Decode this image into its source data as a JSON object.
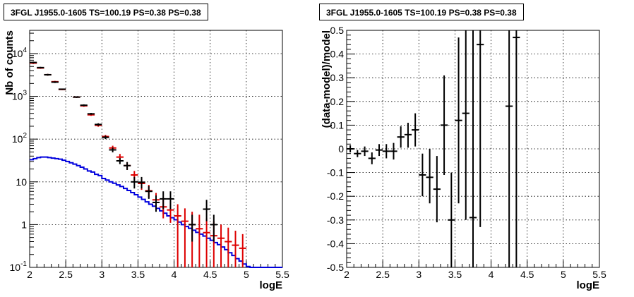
{
  "chart_data": [
    {
      "type": "line",
      "title": "3FGL J1955.0-1605 TS=100.19 PS=0.38 PS=0.38",
      "xlabel": "logE",
      "ylabel": "Nb of counts",
      "xlim": [
        2,
        5.5
      ],
      "ylim": [
        0.1,
        35000
      ],
      "yscale": "log",
      "grid": true,
      "xticks": [
        "2",
        "2.5",
        "3",
        "3.5",
        "4",
        "4.5",
        "5",
        "5.5"
      ],
      "yticks": [
        {
          "value": 0.1,
          "base": "10",
          "exp": "-1",
          "label": "0.1"
        },
        {
          "value": 1,
          "base": "1",
          "exp": "",
          "label": "1"
        },
        {
          "value": 10,
          "base": "10",
          "exp": "",
          "label": "10"
        },
        {
          "value": 100,
          "base": "10",
          "exp": "2",
          "label": ""
        },
        {
          "value": 1000,
          "base": "10",
          "exp": "3",
          "label": ""
        },
        {
          "value": 10000,
          "base": "10",
          "exp": "4",
          "label": ""
        }
      ],
      "series": [
        {
          "kind": "step",
          "color": "#0000dd",
          "x_edges": [
            2.0,
            2.05,
            2.1,
            2.15,
            2.2,
            2.25,
            2.3,
            2.35,
            2.4,
            2.45,
            2.5,
            2.55,
            2.6,
            2.65,
            2.7,
            2.75,
            2.8,
            2.85,
            2.9,
            2.95,
            3.0,
            3.05,
            3.1,
            3.15,
            3.2,
            3.25,
            3.3,
            3.35,
            3.4,
            3.45,
            3.5,
            3.55,
            3.6,
            3.65,
            3.7,
            3.75,
            3.8,
            3.85,
            3.9,
            3.95,
            4.0,
            4.05,
            4.1,
            4.15,
            4.2,
            4.25,
            4.3,
            4.35,
            4.4,
            4.45,
            4.5,
            4.55,
            4.6,
            4.65,
            4.7,
            4.75,
            4.8,
            4.85,
            4.9,
            4.95,
            5.0,
            5.05,
            5.1,
            5.15,
            5.2,
            5.25,
            5.3,
            5.35,
            5.4,
            5.45,
            5.5
          ],
          "values": [
            33,
            35,
            37,
            38,
            38,
            37,
            36,
            35,
            34,
            32,
            30,
            28,
            26,
            24,
            22,
            20,
            18,
            17,
            15,
            14,
            12,
            11,
            10,
            9.3,
            8.5,
            7.8,
            7.0,
            6.3,
            5.6,
            5.0,
            4.4,
            3.9,
            3.4,
            3.0,
            2.7,
            2.4,
            2.1,
            1.85,
            1.6,
            1.45,
            1.3,
            1.15,
            1.0,
            0.9,
            0.82,
            0.74,
            0.66,
            0.6,
            0.54,
            0.48,
            0.43,
            0.38,
            0.34,
            0.3,
            0.26,
            0.22,
            0.19,
            0.16,
            0.14,
            0.12,
            0.105,
            0.1,
            0.1,
            0.1,
            0.1,
            0.1,
            0.1,
            0.1,
            0.1,
            0.1
          ]
        },
        {
          "kind": "points",
          "color": "#dd0000",
          "half_width": 0.05,
          "points": [
            [
              2.05,
              6000,
              5700,
              6300
            ],
            [
              2.15,
              4600,
              4400,
              4800
            ],
            [
              2.25,
              3200,
              3050,
              3350
            ],
            [
              2.35,
              2200,
              2100,
              2300
            ],
            [
              2.45,
              1450,
              1400,
              1500
            ],
            [
              2.65,
              960,
              920,
              1000
            ],
            [
              2.75,
              600,
              570,
              630
            ],
            [
              2.85,
              370,
              350,
              390
            ],
            [
              2.95,
              210,
              195,
              225
            ],
            [
              3.05,
              115,
              105,
              125
            ],
            [
              3.15,
              62,
              55,
              70
            ],
            [
              3.25,
              38,
              32,
              45
            ],
            [
              3.35,
              24,
              19,
              29
            ],
            [
              3.45,
              14.5,
              11,
              18
            ],
            [
              3.55,
              9.2,
              6.5,
              12
            ],
            [
              3.65,
              6.2,
              4.2,
              8.5
            ],
            [
              3.75,
              3.8,
              2.3,
              5.5
            ],
            [
              3.85,
              2.6,
              1.4,
              4.2
            ],
            [
              3.95,
              2.2,
              1.1,
              3.6
            ],
            [
              4.05,
              1.6,
              0.1,
              3.0
            ],
            [
              4.15,
              1.2,
              0.1,
              2.4
            ],
            [
              4.25,
              1.0,
              0.1,
              2.0
            ],
            [
              4.35,
              0.8,
              0.1,
              1.7
            ],
            [
              4.45,
              0.65,
              0.1,
              1.4
            ],
            [
              4.55,
              0.55,
              0.1,
              1.2
            ],
            [
              4.65,
              0.48,
              0.1,
              1.0
            ],
            [
              4.75,
              0.4,
              0.1,
              0.85
            ],
            [
              4.85,
              0.33,
              0.1,
              0.72
            ],
            [
              4.95,
              0.28,
              0.1,
              0.6
            ]
          ]
        },
        {
          "kind": "points",
          "color": "#000000",
          "half_width": 0.05,
          "points": [
            [
              2.05,
              6200,
              5900,
              6500
            ],
            [
              2.15,
              4700,
              4500,
              4900
            ],
            [
              2.25,
              3200,
              3050,
              3350
            ],
            [
              2.35,
              2150,
              2050,
              2250
            ],
            [
              2.45,
              1470,
              1420,
              1520
            ],
            [
              2.65,
              960,
              920,
              1000
            ],
            [
              2.75,
              620,
              590,
              650
            ],
            [
              2.85,
              390,
              370,
              410
            ],
            [
              2.95,
              220,
              205,
              235
            ],
            [
              3.05,
              110,
              100,
              120
            ],
            [
              3.15,
              56,
              49,
              63
            ],
            [
              3.25,
              31,
              26,
              36
            ],
            [
              3.35,
              24,
              19,
              29
            ],
            [
              3.45,
              10,
              7,
              13
            ],
            [
              3.55,
              9.8,
              7,
              13
            ],
            [
              3.65,
              6,
              4,
              8
            ],
            [
              3.75,
              3.3,
              2,
              4.8
            ],
            [
              3.85,
              4,
              2.3,
              6
            ],
            [
              3.95,
              4,
              2.3,
              6
            ],
            [
              4.45,
              2.3,
              1.2,
              3.8
            ],
            [
              4.25,
              1.0,
              0.4,
              1.7
            ],
            [
              4.55,
              1.0,
              0.4,
              1.7
            ]
          ]
        }
      ]
    },
    {
      "type": "scatter",
      "title": "3FGL J1955.0-1605 TS=100.19 PS=0.38 PS=0.38",
      "xlabel": "logE",
      "ylabel": "(data-model)/model",
      "xlim": [
        2,
        5.5
      ],
      "ylim": [
        -0.5,
        0.5
      ],
      "grid": true,
      "xticks": [
        "2",
        "2.5",
        "3",
        "3.5",
        "4",
        "4.5",
        "5",
        "5.5"
      ],
      "yticks": [
        "-0.5",
        "-0.4",
        "-0.3",
        "-0.2",
        "-0.1",
        "0",
        "0.1",
        "0.2",
        "0.3",
        "0.4",
        "0.5"
      ],
      "series": [
        {
          "color": "#000000",
          "half_width": 0.05,
          "points": [
            [
              2.05,
              0.0,
              -0.015,
              0.015
            ],
            [
              2.15,
              -0.02,
              -0.035,
              -0.005
            ],
            [
              2.25,
              -0.01,
              -0.03,
              0.01
            ],
            [
              2.35,
              -0.04,
              -0.065,
              -0.015
            ],
            [
              2.45,
              -0.005,
              -0.03,
              0.02
            ],
            [
              2.55,
              -0.01,
              -0.04,
              0.02
            ],
            [
              2.65,
              -0.01,
              -0.045,
              0.025
            ],
            [
              2.75,
              0.05,
              0.005,
              0.095
            ],
            [
              2.85,
              0.06,
              0.005,
              0.11
            ],
            [
              2.95,
              0.08,
              0.01,
              0.15
            ],
            [
              3.05,
              -0.11,
              -0.2,
              -0.02
            ],
            [
              3.15,
              -0.12,
              -0.23,
              0.0
            ],
            [
              3.25,
              -0.17,
              -0.31,
              -0.03
            ],
            [
              3.35,
              0.1,
              -0.11,
              0.31
            ],
            [
              3.45,
              -0.3,
              -0.5,
              -0.1
            ],
            [
              3.55,
              0.12,
              -0.23,
              0.47
            ],
            [
              3.65,
              0.15,
              -0.3,
              0.5
            ],
            [
              3.75,
              -0.29,
              -0.5,
              0.5
            ],
            [
              3.85,
              0.44,
              -0.33,
              0.5
            ],
            [
              4.25,
              0.18,
              -0.5,
              0.5
            ],
            [
              4.35,
              0.47,
              -0.5,
              0.5
            ]
          ]
        }
      ]
    }
  ]
}
